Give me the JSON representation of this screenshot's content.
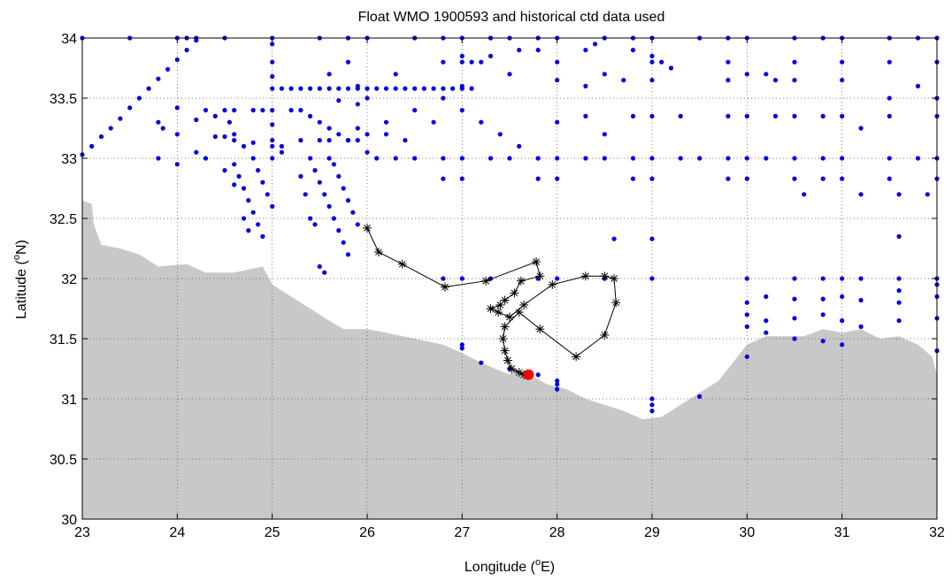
{
  "title": "Float WMO 1900593 and historical ctd data used",
  "axes": {
    "xlabel_prefix": "Longitude (",
    "xlabel_sup": "o",
    "xlabel_suffix": "E)",
    "ylabel_prefix": "Latitude (",
    "ylabel_sup": "o",
    "ylabel_suffix": "N)",
    "xticks": [
      "23",
      "24",
      "25",
      "26",
      "27",
      "28",
      "29",
      "30",
      "31",
      "32"
    ],
    "yticks": [
      "30",
      "30.5",
      "31",
      "31.5",
      "32",
      "32.5",
      "33",
      "33.5",
      "34"
    ]
  },
  "colors": {
    "land": "#c8c8c8",
    "ctd": "#0000e6",
    "track": "#000000",
    "last_position": "#ff0000",
    "grid": "#555555"
  },
  "chart_data": {
    "type": "scatter",
    "title": "Float WMO 1900593 and historical ctd data used",
    "xlabel": "Longitude (oE)",
    "ylabel": "Latitude (oN)",
    "xlim": [
      23,
      32
    ],
    "ylim": [
      30,
      34
    ],
    "grid": true,
    "coastline": [
      [
        23,
        32.65
      ],
      [
        23.1,
        32.62
      ],
      [
        23.12,
        32.45
      ],
      [
        23.2,
        32.28
      ],
      [
        23.4,
        32.25
      ],
      [
        23.6,
        32.2
      ],
      [
        23.8,
        32.1
      ],
      [
        24.1,
        32.12
      ],
      [
        24.3,
        32.05
      ],
      [
        24.6,
        32.05
      ],
      [
        24.9,
        32.1
      ],
      [
        25.0,
        31.95
      ],
      [
        25.1,
        31.9
      ],
      [
        25.3,
        31.8
      ],
      [
        25.6,
        31.65
      ],
      [
        25.75,
        31.58
      ],
      [
        26.0,
        31.58
      ],
      [
        26.2,
        31.55
      ],
      [
        26.5,
        31.5
      ],
      [
        26.8,
        31.45
      ],
      [
        27.0,
        31.38
      ],
      [
        27.2,
        31.3
      ],
      [
        27.35,
        31.25
      ],
      [
        27.5,
        31.2
      ],
      [
        27.55,
        31.25
      ],
      [
        27.7,
        31.2
      ],
      [
        27.9,
        31.12
      ],
      [
        28.1,
        31.08
      ],
      [
        28.3,
        31.0
      ],
      [
        28.5,
        30.95
      ],
      [
        28.7,
        30.9
      ],
      [
        28.9,
        30.83
      ],
      [
        29.1,
        30.85
      ],
      [
        29.3,
        30.95
      ],
      [
        29.5,
        31.05
      ],
      [
        29.7,
        31.15
      ],
      [
        29.85,
        31.3
      ],
      [
        30.0,
        31.45
      ],
      [
        30.2,
        31.52
      ],
      [
        30.4,
        31.52
      ],
      [
        30.6,
        31.52
      ],
      [
        30.8,
        31.58
      ],
      [
        31.0,
        31.55
      ],
      [
        31.2,
        31.58
      ],
      [
        31.4,
        31.5
      ],
      [
        31.6,
        31.52
      ],
      [
        31.8,
        31.45
      ],
      [
        31.95,
        31.35
      ],
      [
        32,
        31.2
      ]
    ],
    "float_track": [
      [
        26.0,
        32.42
      ],
      [
        26.12,
        32.22
      ],
      [
        26.37,
        32.12
      ],
      [
        26.82,
        31.93
      ],
      [
        27.25,
        31.98
      ],
      [
        27.78,
        32.14
      ],
      [
        27.82,
        32.02
      ],
      [
        27.62,
        31.98
      ],
      [
        27.55,
        31.88
      ],
      [
        27.45,
        31.82
      ],
      [
        27.4,
        31.78
      ],
      [
        27.3,
        31.75
      ],
      [
        27.38,
        31.72
      ],
      [
        27.5,
        31.68
      ],
      [
        27.65,
        31.78
      ],
      [
        27.95,
        31.95
      ],
      [
        28.3,
        32.02
      ],
      [
        28.5,
        32.02
      ],
      [
        28.6,
        32.0
      ],
      [
        28.62,
        31.8
      ],
      [
        28.5,
        31.53
      ],
      [
        28.2,
        31.35
      ],
      [
        27.82,
        31.58
      ],
      [
        27.6,
        31.72
      ],
      [
        27.45,
        31.6
      ],
      [
        27.43,
        31.5
      ],
      [
        27.45,
        31.4
      ],
      [
        27.48,
        31.32
      ],
      [
        27.52,
        31.25
      ],
      [
        27.6,
        31.22
      ],
      [
        27.65,
        31.2
      ]
    ],
    "last_position": [
      27.7,
      31.2
    ],
    "ctd_stations": [
      [
        23,
        34
      ],
      [
        23.5,
        34
      ],
      [
        24,
        34
      ],
      [
        24.1,
        34
      ],
      [
        24.2,
        34
      ],
      [
        24.5,
        34
      ],
      [
        25,
        34
      ],
      [
        25.5,
        34
      ],
      [
        25.8,
        34
      ],
      [
        26,
        34
      ],
      [
        26.5,
        34
      ],
      [
        26.8,
        34
      ],
      [
        27,
        34
      ],
      [
        27.3,
        34
      ],
      [
        27.5,
        34
      ],
      [
        27.8,
        34
      ],
      [
        28,
        34
      ],
      [
        28.5,
        34
      ],
      [
        28.8,
        34
      ],
      [
        29,
        34
      ],
      [
        29.5,
        34
      ],
      [
        29.8,
        34
      ],
      [
        30,
        34
      ],
      [
        30.5,
        34
      ],
      [
        30.8,
        34
      ],
      [
        31,
        34
      ],
      [
        31.5,
        34
      ],
      [
        31.8,
        34
      ],
      [
        32,
        34
      ],
      [
        23,
        33.03
      ],
      [
        23.1,
        33.1
      ],
      [
        23.2,
        33.18
      ],
      [
        23.3,
        33.25
      ],
      [
        23.4,
        33.33
      ],
      [
        23.5,
        33.42
      ],
      [
        23.6,
        33.5
      ],
      [
        23.7,
        33.58
      ],
      [
        23.8,
        33.66
      ],
      [
        23.9,
        33.74
      ],
      [
        24,
        33.82
      ],
      [
        24.1,
        33.9
      ],
      [
        24.2,
        33.98
      ],
      [
        23.8,
        33.3
      ],
      [
        23.85,
        33.25
      ],
      [
        24,
        33.42
      ],
      [
        24.2,
        33.32
      ],
      [
        24.0,
        33.2
      ],
      [
        24.2,
        33.05
      ],
      [
        24.3,
        33.0
      ],
      [
        24.0,
        32.95
      ],
      [
        23.8,
        33.0
      ],
      [
        24.5,
        33.4
      ],
      [
        24.55,
        33.3
      ],
      [
        24.6,
        33.2
      ],
      [
        24.7,
        33.1
      ],
      [
        24.8,
        33.0
      ],
      [
        24.85,
        32.9
      ],
      [
        24.9,
        32.8
      ],
      [
        24.95,
        32.7
      ],
      [
        25.0,
        32.6
      ],
      [
        24.6,
        32.95
      ],
      [
        24.65,
        32.85
      ],
      [
        24.7,
        32.75
      ],
      [
        24.75,
        32.65
      ],
      [
        24.8,
        32.55
      ],
      [
        24.85,
        32.45
      ],
      [
        24.9,
        32.35
      ],
      [
        24.5,
        32.9
      ],
      [
        24.6,
        32.78
      ],
      [
        24.7,
        32.5
      ],
      [
        24.75,
        32.4
      ],
      [
        25.0,
        33.58
      ],
      [
        25.1,
        33.58
      ],
      [
        25.2,
        33.58
      ],
      [
        25.3,
        33.58
      ],
      [
        25.4,
        33.58
      ],
      [
        25.5,
        33.58
      ],
      [
        25.6,
        33.58
      ],
      [
        25.7,
        33.58
      ],
      [
        25.8,
        33.58
      ],
      [
        25.9,
        33.58
      ],
      [
        26.0,
        33.58
      ],
      [
        26.1,
        33.58
      ],
      [
        26.2,
        33.58
      ],
      [
        26.3,
        33.58
      ],
      [
        26.4,
        33.58
      ],
      [
        26.5,
        33.58
      ],
      [
        26.6,
        33.58
      ],
      [
        26.7,
        33.58
      ],
      [
        26.8,
        33.58
      ],
      [
        26.9,
        33.58
      ],
      [
        27.0,
        33.58
      ],
      [
        27.1,
        33.58
      ],
      [
        25,
        33.95
      ],
      [
        25,
        33.8
      ],
      [
        25,
        33.68
      ],
      [
        25,
        33.4
      ],
      [
        25,
        33.28
      ],
      [
        25,
        33.15
      ],
      [
        25,
        33.0
      ],
      [
        25.1,
        33.05
      ],
      [
        25.1,
        33.1
      ],
      [
        24.3,
        33.4
      ],
      [
        24.4,
        33.35
      ],
      [
        24.6,
        33.4
      ],
      [
        24.8,
        33.4
      ],
      [
        24.9,
        33.4
      ],
      [
        25.2,
        33.4
      ],
      [
        25.3,
        33.4
      ],
      [
        25.4,
        33.35
      ],
      [
        25.5,
        33.3
      ],
      [
        25.6,
        33.25
      ],
      [
        25.7,
        33.2
      ],
      [
        25.8,
        33.15
      ],
      [
        25.9,
        33.15
      ],
      [
        26.0,
        33.2
      ],
      [
        26.2,
        33.2
      ],
      [
        26.4,
        33.15
      ],
      [
        24.4,
        33.18
      ],
      [
        24.5,
        33.18
      ],
      [
        24.6,
        33.15
      ],
      [
        24.8,
        33.13
      ],
      [
        25.0,
        33.1
      ],
      [
        25.3,
        33.15
      ],
      [
        25.5,
        33.15
      ],
      [
        25.6,
        33.15
      ],
      [
        25.8,
        33.15
      ],
      [
        25.4,
        33.0
      ],
      [
        25.45,
        32.9
      ],
      [
        25.5,
        32.8
      ],
      [
        25.55,
        32.7
      ],
      [
        25.6,
        32.6
      ],
      [
        25.65,
        32.5
      ],
      [
        25.7,
        32.4
      ],
      [
        25.75,
        32.3
      ],
      [
        25.8,
        32.2
      ],
      [
        25.3,
        32.85
      ],
      [
        25.35,
        32.7
      ],
      [
        25.4,
        32.5
      ],
      [
        25.45,
        32.45
      ],
      [
        25.5,
        32.1
      ],
      [
        25.55,
        32.05
      ],
      [
        25.6,
        33.0
      ],
      [
        25.65,
        32.95
      ],
      [
        25.7,
        32.85
      ],
      [
        25.75,
        32.75
      ],
      [
        25.8,
        32.65
      ],
      [
        25.85,
        32.55
      ],
      [
        25.9,
        32.45
      ],
      [
        25.9,
        33.25
      ],
      [
        26.0,
        33.05
      ],
      [
        26.1,
        33.0
      ],
      [
        26.3,
        33.0
      ],
      [
        26.5,
        33.0
      ],
      [
        26.8,
        33.0
      ],
      [
        27,
        33.0
      ],
      [
        27.3,
        33.0
      ],
      [
        27.5,
        33.0
      ],
      [
        27.8,
        33.0
      ],
      [
        28,
        33.0
      ],
      [
        28.3,
        33.0
      ],
      [
        28.5,
        33.0
      ],
      [
        28.8,
        33.0
      ],
      [
        29,
        33.0
      ],
      [
        29.3,
        33.0
      ],
      [
        29.5,
        33.0
      ],
      [
        29.8,
        33.0
      ],
      [
        30,
        33.0
      ],
      [
        30.5,
        33.0
      ],
      [
        30.8,
        33.0
      ],
      [
        31,
        33.0
      ],
      [
        31.5,
        33.0
      ],
      [
        31.8,
        33.0
      ],
      [
        32,
        33.0
      ],
      [
        25.8,
        33.8
      ],
      [
        25.9,
        33.6
      ],
      [
        25.6,
        33.7
      ],
      [
        25.7,
        33.48
      ],
      [
        25.9,
        33.45
      ],
      [
        26.0,
        33.5
      ],
      [
        26.3,
        33.7
      ],
      [
        26.2,
        33.3
      ],
      [
        26.5,
        33.4
      ],
      [
        26.7,
        33.3
      ],
      [
        26.8,
        33.5
      ],
      [
        27.0,
        33.4
      ],
      [
        27.2,
        33.3
      ],
      [
        27.4,
        33.2
      ],
      [
        27.6,
        33.1
      ],
      [
        27.8,
        33.0
      ],
      [
        26.8,
        33.8
      ],
      [
        27.0,
        33.85
      ],
      [
        27.1,
        33.8
      ],
      [
        27.2,
        33.8
      ],
      [
        27.3,
        33.85
      ],
      [
        27.5,
        33.7
      ],
      [
        27.6,
        33.9
      ],
      [
        27.8,
        33.9
      ],
      [
        28.0,
        33.8
      ],
      [
        28.3,
        33.9
      ],
      [
        28.4,
        33.95
      ],
      [
        28.5,
        33.7
      ],
      [
        28.7,
        33.65
      ],
      [
        28.8,
        33.9
      ],
      [
        29.0,
        33.85
      ],
      [
        29.1,
        33.8
      ],
      [
        29.2,
        33.75
      ],
      [
        27.0,
        33.8
      ],
      [
        27.0,
        33.6
      ],
      [
        27.0,
        32.83
      ],
      [
        26.8,
        32.83
      ],
      [
        27.8,
        32.83
      ],
      [
        28.0,
        32.83
      ],
      [
        28.8,
        32.83
      ],
      [
        29.0,
        32.83
      ],
      [
        29.8,
        32.83
      ],
      [
        30.0,
        32.83
      ],
      [
        30.5,
        32.83
      ],
      [
        30.8,
        32.83
      ],
      [
        31.0,
        32.83
      ],
      [
        31.5,
        32.83
      ],
      [
        32,
        32.83
      ],
      [
        28.0,
        33.3
      ],
      [
        28.3,
        33.35
      ],
      [
        28.5,
        33.2
      ],
      [
        28.8,
        33.35
      ],
      [
        29.0,
        33.35
      ],
      [
        29.3,
        33.35
      ],
      [
        29.8,
        33.35
      ],
      [
        30.0,
        33.35
      ],
      [
        30.3,
        33.35
      ],
      [
        30.5,
        33.35
      ],
      [
        30.8,
        33.35
      ],
      [
        31.0,
        33.35
      ],
      [
        31.5,
        33.35
      ],
      [
        32,
        33.35
      ],
      [
        28.0,
        33.65
      ],
      [
        28.3,
        33.6
      ],
      [
        29.0,
        33.65
      ],
      [
        29.8,
        33.65
      ],
      [
        30.0,
        33.7
      ],
      [
        30.3,
        33.65
      ],
      [
        30.5,
        33.65
      ],
      [
        31.0,
        33.65
      ],
      [
        31.5,
        33.5
      ],
      [
        31.8,
        33.6
      ],
      [
        32,
        33.5
      ],
      [
        29.0,
        33.8
      ],
      [
        29.8,
        33.8
      ],
      [
        30.5,
        33.8
      ],
      [
        31.0,
        33.8
      ],
      [
        31.5,
        33.8
      ],
      [
        32,
        33.8
      ],
      [
        30.2,
        33.0
      ],
      [
        30.6,
        32.7
      ],
      [
        31.2,
        32.7
      ],
      [
        31.6,
        32.7
      ],
      [
        31.9,
        32.7
      ],
      [
        31.2,
        33.25
      ],
      [
        30.2,
        33.7
      ],
      [
        28.6,
        32.33
      ],
      [
        29.0,
        32.33
      ],
      [
        31.6,
        32.35
      ],
      [
        26.8,
        32.0
      ],
      [
        27.0,
        32.0
      ],
      [
        27.3,
        32.0
      ],
      [
        27.8,
        32.0
      ],
      [
        28.0,
        32.0
      ],
      [
        28.5,
        32.0
      ],
      [
        29.0,
        32.0
      ],
      [
        30.0,
        32.0
      ],
      [
        30.5,
        32.0
      ],
      [
        30.8,
        32.0
      ],
      [
        31.0,
        32.0
      ],
      [
        31.2,
        32.0
      ],
      [
        31.6,
        32.0
      ],
      [
        32,
        32.0
      ],
      [
        30.0,
        31.8
      ],
      [
        30.2,
        31.85
      ],
      [
        30.5,
        31.83
      ],
      [
        30.8,
        31.83
      ],
      [
        31.0,
        31.85
      ],
      [
        31.2,
        31.82
      ],
      [
        31.6,
        31.8
      ],
      [
        32,
        31.85
      ],
      [
        30.0,
        31.7
      ],
      [
        30.2,
        31.65
      ],
      [
        30.5,
        31.67
      ],
      [
        30.8,
        31.7
      ],
      [
        31.0,
        31.65
      ],
      [
        31.2,
        31.6
      ],
      [
        31.6,
        31.65
      ],
      [
        32,
        31.67
      ],
      [
        30.0,
        31.6
      ],
      [
        30.2,
        31.55
      ],
      [
        30.5,
        31.5
      ],
      [
        30.8,
        31.48
      ],
      [
        31.0,
        31.45
      ],
      [
        31.6,
        31.9
      ],
      [
        32.0,
        31.95
      ],
      [
        32.0,
        31.4
      ],
      [
        27.0,
        31.45
      ],
      [
        27.0,
        31.42
      ],
      [
        28.0,
        31.12
      ],
      [
        28.0,
        31.08
      ],
      [
        28.0,
        31.15
      ],
      [
        29.0,
        31.0
      ],
      [
        29.0,
        30.95
      ],
      [
        29.0,
        30.9
      ],
      [
        29.5,
        31.02
      ],
      [
        30.0,
        31.35
      ],
      [
        27.2,
        31.3
      ],
      [
        27.5,
        31.25
      ],
      [
        27.8,
        31.2
      ]
    ]
  }
}
